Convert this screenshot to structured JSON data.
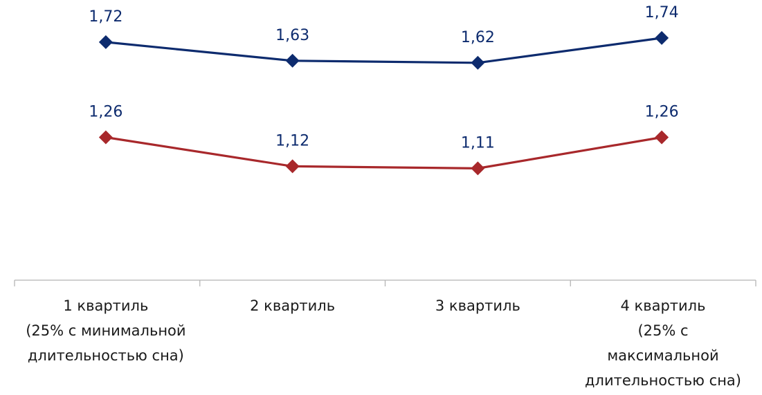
{
  "chart_data": {
    "type": "line",
    "categories": [
      [
        "1 квартиль",
        "(25% с минимальной",
        "длительностью сна)"
      ],
      [
        "2 квартиль"
      ],
      [
        "3 квартиль"
      ],
      [
        "4 квартиль",
        "(25% с",
        "максимальной",
        "длительностью сна)"
      ]
    ],
    "series": [
      {
        "values": [
          1.72,
          1.63,
          1.62,
          1.74
        ],
        "labels": [
          "1,72",
          "1,63",
          "1,62",
          "1,74"
        ],
        "color": "#0d2b6e",
        "marker": "diamond"
      },
      {
        "values": [
          1.26,
          1.12,
          1.11,
          1.26
        ],
        "labels": [
          "1,26",
          "1,12",
          "1,11",
          "1,26"
        ],
        "color": "#a8282b",
        "marker": "diamond"
      }
    ],
    "grid": false,
    "legend": "none"
  }
}
